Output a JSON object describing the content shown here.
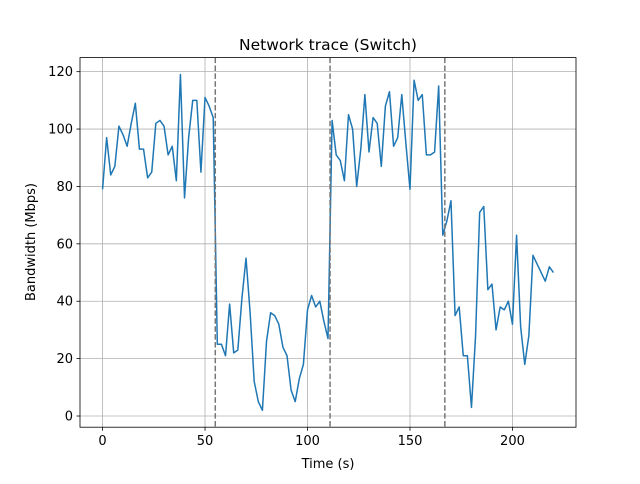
{
  "chart_data": {
    "type": "line",
    "title": "Network trace (Switch)",
    "x_label": "Time (s)",
    "y_label": "Bandwidth (Mbps)",
    "x": [
      0,
      2,
      4,
      6,
      8,
      10,
      12,
      14,
      16,
      18,
      20,
      22,
      24,
      26,
      28,
      30,
      32,
      34,
      36,
      38,
      40,
      42,
      44,
      46,
      48,
      50,
      52,
      54,
      56,
      58,
      60,
      62,
      64,
      66,
      68,
      70,
      72,
      74,
      76,
      78,
      80,
      82,
      84,
      86,
      88,
      90,
      92,
      94,
      96,
      98,
      100,
      102,
      104,
      106,
      108,
      110,
      112,
      114,
      116,
      118,
      120,
      122,
      124,
      126,
      128,
      130,
      132,
      134,
      136,
      138,
      140,
      142,
      144,
      146,
      148,
      150,
      152,
      154,
      156,
      158,
      160,
      162,
      164,
      166,
      168,
      170,
      172,
      174,
      176,
      178,
      180,
      182,
      184,
      186,
      188,
      190,
      192,
      194,
      196,
      198,
      200,
      202,
      204,
      206,
      208,
      210,
      212,
      214,
      216,
      218,
      220
    ],
    "values": [
      79,
      97,
      84,
      87,
      101,
      98,
      94,
      102,
      109,
      93,
      93,
      83,
      85,
      102,
      103,
      101,
      91,
      94,
      82,
      119,
      76,
      97,
      110,
      110,
      85,
      111,
      108,
      104,
      25,
      25,
      21,
      39,
      22,
      23,
      41,
      55,
      36,
      12,
      5,
      2,
      26,
      36,
      35,
      32,
      24,
      21,
      9,
      5,
      13,
      18,
      37,
      42,
      38,
      40,
      33,
      27,
      103,
      91,
      89,
      82,
      105,
      100,
      80,
      93,
      112,
      92,
      104,
      102,
      87,
      108,
      113,
      94,
      97,
      112,
      95,
      79,
      117,
      110,
      112,
      91,
      91,
      92,
      115,
      63,
      68,
      75,
      35,
      38,
      21,
      21,
      3,
      28,
      71,
      73,
      44,
      46,
      30,
      38,
      37,
      40,
      32,
      63,
      31,
      18,
      28,
      56,
      53,
      50,
      47,
      52,
      50
    ],
    "color": "#1f77b4",
    "switch_lines": [
      55,
      111,
      167
    ],
    "switch_color": "#777777",
    "xlim": [
      -11,
      231
    ],
    "ylim": [
      -3.9,
      124.9
    ],
    "xticks": [
      0,
      50,
      100,
      150,
      200
    ],
    "yticks": [
      0,
      20,
      40,
      60,
      80,
      100,
      120
    ],
    "grid": true
  }
}
